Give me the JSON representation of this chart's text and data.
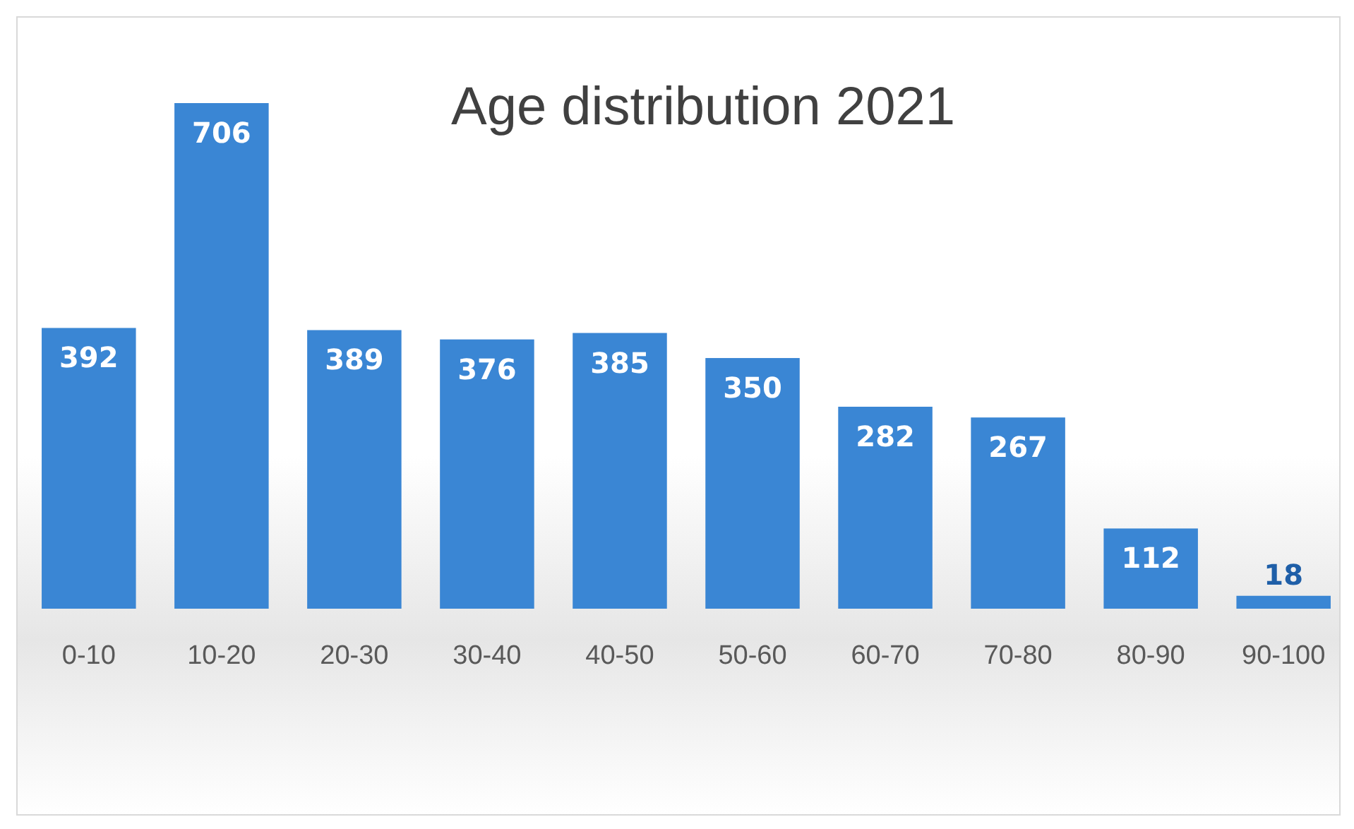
{
  "chart_data": {
    "type": "bar",
    "title": "Age distribution 2021",
    "categories": [
      "0-10",
      "10-20",
      "20-30",
      "30-40",
      "40-50",
      "50-60",
      "60-70",
      "70-80",
      "80-90",
      "90-100"
    ],
    "values": [
      392,
      706,
      389,
      376,
      385,
      350,
      282,
      267,
      112,
      18
    ],
    "color": "#3a86d4",
    "data_labels": true
  }
}
